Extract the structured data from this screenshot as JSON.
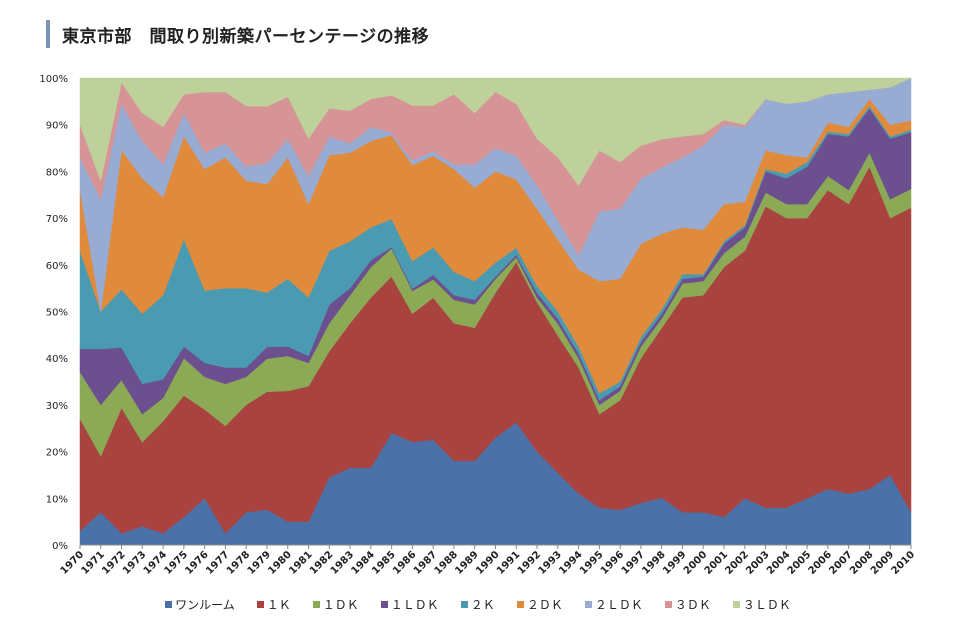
{
  "chart_data": {
    "type": "area",
    "title": "東京市部　間取り別新築パーセンテージの推移",
    "xlabel": "",
    "ylabel": "",
    "stacked": true,
    "percent": true,
    "ylim": [
      0,
      100
    ],
    "y_ticks": [
      "0%",
      "10%",
      "20%",
      "30%",
      "40%",
      "50%",
      "60%",
      "70%",
      "80%",
      "90%",
      "100%"
    ],
    "legend_position": "bottom",
    "grid": false,
    "categories": [
      "1970",
      "1971",
      "1972",
      "1973",
      "1974",
      "1975",
      "1976",
      "1977",
      "1978",
      "1979",
      "1980",
      "1981",
      "1982",
      "1983",
      "1984",
      "1985",
      "1986",
      "1987",
      "1988",
      "1989",
      "1990",
      "1991",
      "1992",
      "1993",
      "1994",
      "1995",
      "1996",
      "1997",
      "1998",
      "1999",
      "2000",
      "2001",
      "2002",
      "2003",
      "2004",
      "2005",
      "2006",
      "2007",
      "2008",
      "2009",
      "2010"
    ],
    "series": [
      {
        "name": "ワンルーム",
        "color": "#4a72a8",
        "values": [
          3,
          7,
          2.5,
          4,
          2.5,
          6,
          10,
          2.5,
          7,
          7.5,
          5,
          5,
          14.5,
          16.5,
          16.5,
          24,
          22.5,
          23,
          18,
          18,
          23,
          26,
          20,
          15,
          11,
          8,
          7.5,
          9,
          10,
          7,
          7,
          6,
          10,
          8,
          8,
          10,
          12,
          11,
          12,
          15,
          7
        ]
      },
      {
        "name": "１Ｋ",
        "color": "#a9433f",
        "values": [
          24,
          12,
          27,
          18,
          24,
          26,
          19,
          23,
          23,
          25,
          28,
          29,
          27,
          31,
          36.5,
          33.5,
          28,
          31,
          29.5,
          28.5,
          31,
          34,
          32,
          28.5,
          27,
          20,
          23.5,
          31,
          36,
          46,
          46.5,
          53.5,
          53,
          64.5,
          62,
          60,
          64,
          62,
          69,
          55,
          64.5
        ]
      },
      {
        "name": "１ＤＫ",
        "color": "#8caa55",
        "values": [
          10,
          11,
          6,
          6,
          5,
          8,
          7,
          9,
          6,
          7,
          7.5,
          5,
          6,
          6,
          6.5,
          6,
          5,
          4,
          5,
          5,
          3,
          1,
          1,
          2.5,
          2,
          2,
          2,
          2.5,
          2,
          3,
          3,
          3,
          3,
          3,
          3,
          3,
          3,
          3,
          3,
          4,
          4
        ]
      },
      {
        "name": "１ＬＤＫ",
        "color": "#6b4f8e",
        "values": [
          5,
          12,
          7,
          6.5,
          4,
          2.5,
          3,
          3.5,
          2,
          2.5,
          2,
          1.5,
          4,
          1.5,
          1.5,
          0.3,
          0.5,
          1,
          1,
          1,
          0.5,
          0.5,
          1,
          1,
          1,
          1,
          1,
          1,
          1,
          1,
          1,
          2,
          2,
          4.5,
          5.5,
          8,
          9,
          11.5,
          9.5,
          13,
          12
        ]
      },
      {
        "name": "２Ｋ",
        "color": "#4a9bb2",
        "values": [
          21,
          8,
          12.5,
          15,
          18,
          23,
          15.5,
          17,
          17,
          11.5,
          14.5,
          12.5,
          11.5,
          10,
          7,
          6,
          6,
          6,
          5,
          4,
          3,
          1.5,
          1.5,
          1.5,
          1.5,
          1.5,
          1,
          1,
          1,
          1,
          0.5,
          0.5,
          0.5,
          0.5,
          1,
          1,
          0.5,
          0.5,
          0.5,
          0.5,
          0.5
        ]
      },
      {
        "name": "２ＤＫ",
        "color": "#e08a3c",
        "values": [
          13,
          0,
          30,
          29,
          21,
          22,
          26,
          28,
          23,
          23,
          26,
          20,
          20.5,
          19,
          18.5,
          18,
          21,
          20,
          22,
          20,
          19.5,
          14.5,
          16.5,
          15,
          16.5,
          24,
          22,
          20,
          16,
          10,
          9.5,
          8,
          5,
          4,
          4,
          1,
          2,
          1.5,
          1.5,
          2.5,
          2
        ]
      },
      {
        "name": "２ＬＤＫ",
        "color": "#97abd3",
        "values": [
          7,
          24,
          10,
          8,
          7,
          5,
          3.5,
          3,
          3,
          4.5,
          4,
          6,
          4,
          2,
          3,
          0.5,
          1,
          1,
          1,
          5,
          5,
          5,
          5,
          4,
          3,
          15,
          15,
          14,
          14,
          15,
          18,
          17,
          16,
          11,
          11,
          12,
          6,
          7.5,
          2,
          8,
          9
        ]
      },
      {
        "name": "３ＤＫ",
        "color": "#d69496",
        "values": [
          7,
          4,
          4.5,
          6,
          8,
          4,
          13,
          11,
          13,
          12,
          9,
          8,
          6,
          7,
          6,
          8,
          12,
          10,
          15,
          11,
          12,
          11,
          10,
          13,
          15,
          13,
          10,
          7,
          6,
          4.5,
          2.5,
          1,
          0.5,
          0,
          0,
          0,
          0,
          0,
          0,
          0,
          0
        ]
      },
      {
        "name": "３ＬＤＫ",
        "color": "#bed19a",
        "values": [
          10,
          22,
          1,
          7.5,
          10.5,
          3.5,
          3,
          3,
          6,
          6,
          4,
          13,
          6.5,
          7,
          4.5,
          3.7,
          6,
          6,
          3.5,
          7.5,
          3,
          5.5,
          13,
          16.5,
          23,
          15.5,
          18,
          14.5,
          13,
          12.5,
          12,
          9,
          10,
          4.5,
          5.5,
          5,
          3.5,
          3,
          2.5,
          2,
          0
        ]
      }
    ]
  }
}
